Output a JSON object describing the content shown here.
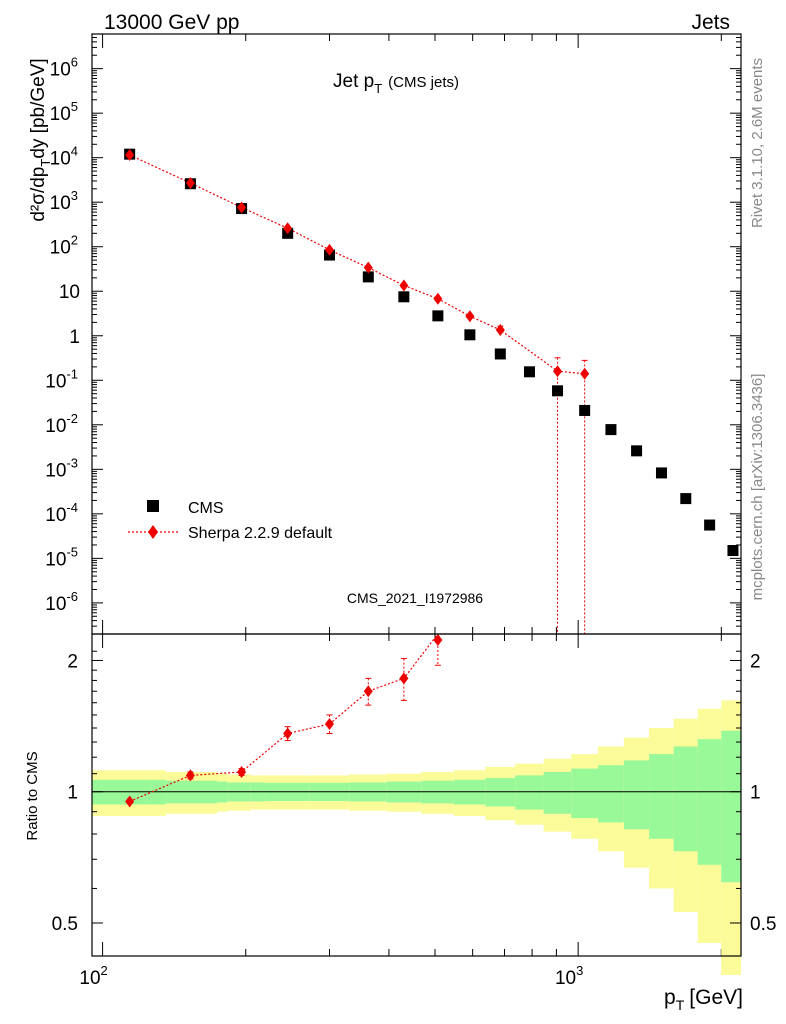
{
  "header": {
    "left": "13000 GeV pp",
    "right": "Jets"
  },
  "side_labels": {
    "top": "Rivet 3.1.10,  2.6M events",
    "bottom": "mcplots.cern.ch [arXiv:1306.3436]"
  },
  "chart_data": {
    "type": "scatter",
    "title": "Jet p",
    "title_sub": "T",
    "title_suffix": "(CMS jets)",
    "watermark": "CMS_2021_I1972986",
    "xlabel": "p",
    "xlabel_sub": "T",
    "xlabel_unit": "[GeV]",
    "xscale": "log",
    "xlim": [
      95,
      2200
    ],
    "x_ticks": [
      "10",
      "10"
    ],
    "x_tick_exponents": [
      "2",
      "3"
    ],
    "ylabel": "d²σ/dp",
    "ylabel_sub": "T",
    "ylabel_suffix": "dy [pb/GeV]",
    "yscale": "log",
    "ylim": [
      2e-07,
      6000000.0
    ],
    "y_tick_labels": [
      {
        "base": "10",
        "exp": "6"
      },
      {
        "base": "10",
        "exp": "5"
      },
      {
        "base": "10",
        "exp": "4"
      },
      {
        "base": "10",
        "exp": "3"
      },
      {
        "base": "10",
        "exp": "2"
      },
      {
        "base": "10",
        "exp": ""
      },
      {
        "base": "1",
        "exp": ""
      },
      {
        "base": "10",
        "exp": "-1"
      },
      {
        "base": "10",
        "exp": "-2"
      },
      {
        "base": "10",
        "exp": "-3"
      },
      {
        "base": "10",
        "exp": "-4"
      },
      {
        "base": "10",
        "exp": "-5"
      },
      {
        "base": "10",
        "exp": "-6"
      }
    ],
    "legend": [
      {
        "name": "CMS",
        "marker": "square",
        "color": "#000000"
      },
      {
        "name": "Sherpa 2.2.9 default",
        "marker": "diamond",
        "color": "#ee0000"
      }
    ],
    "legend_position": "bottom-left",
    "series": [
      {
        "name": "CMS",
        "x": [
          114,
          153,
          196,
          245,
          300,
          362,
          430,
          507,
          592,
          686,
          790,
          905,
          1032,
          1172,
          1327,
          1497,
          1684,
          1890,
          2116
        ],
        "y": [
          12000,
          2600,
          720,
          200,
          65,
          21,
          7.5,
          2.8,
          1.05,
          0.39,
          0.155,
          0.058,
          0.021,
          0.0078,
          0.0026,
          0.00083,
          0.00022,
          5.6e-05,
          1.5e-05
        ]
      },
      {
        "name": "Sherpa 2.2.9 default",
        "x": [
          114,
          153,
          196,
          245,
          300,
          362,
          430,
          507,
          592,
          686,
          905,
          1032
        ],
        "y": [
          11500,
          2700,
          760,
          260,
          85,
          34,
          13.5,
          6.8,
          2.75,
          1.35,
          0.16,
          0.14
        ],
        "y_err_up": [
          0,
          0,
          0,
          0,
          0,
          0,
          0,
          0,
          0,
          0.3,
          0.16,
          0.14
        ],
        "y_err_down_to_bottom": [
          false,
          false,
          false,
          false,
          false,
          false,
          false,
          false,
          false,
          false,
          true,
          true
        ]
      }
    ],
    "ratio": {
      "ylabel": "Ratio to CMS",
      "ylim": [
        0.42,
        2.3
      ],
      "ticks": [
        "2",
        "1",
        "0.5"
      ],
      "tick_values": [
        2,
        1,
        0.5
      ],
      "x": [
        114,
        153,
        196,
        245,
        300,
        362,
        430,
        507
      ],
      "y": [
        0.95,
        1.09,
        1.11,
        1.36,
        1.43,
        1.7,
        1.82,
        2.3
      ],
      "err": [
        0,
        0.02,
        0.02,
        0.05,
        0.07,
        0.12,
        0.2,
        0.35
      ],
      "band_edges": [
        95,
        127,
        136,
        174,
        183,
        205,
        220,
        272,
        330,
        395,
        468,
        548,
        638,
        737,
        846,
        967,
        1101,
        1248,
        1410,
        1588,
        1784,
        1999,
        2200
      ],
      "band_inner": [
        0.065,
        0.065,
        0.06,
        0.055,
        0.05,
        0.05,
        0.048,
        0.048,
        0.05,
        0.055,
        0.06,
        0.065,
        0.075,
        0.09,
        0.11,
        0.13,
        0.15,
        0.18,
        0.22,
        0.27,
        0.32,
        0.38
      ],
      "band_outer": [
        0.12,
        0.12,
        0.11,
        0.1,
        0.095,
        0.09,
        0.09,
        0.09,
        0.095,
        0.1,
        0.11,
        0.12,
        0.14,
        0.16,
        0.19,
        0.22,
        0.27,
        0.33,
        0.4,
        0.47,
        0.55,
        0.62
      ]
    }
  },
  "colors": {
    "data": "#000000",
    "mc": "#ee0000",
    "band_inner": "#99f999",
    "band_outer": "#fbfb99",
    "side_text": "#888888",
    "watermark": "#999999"
  }
}
